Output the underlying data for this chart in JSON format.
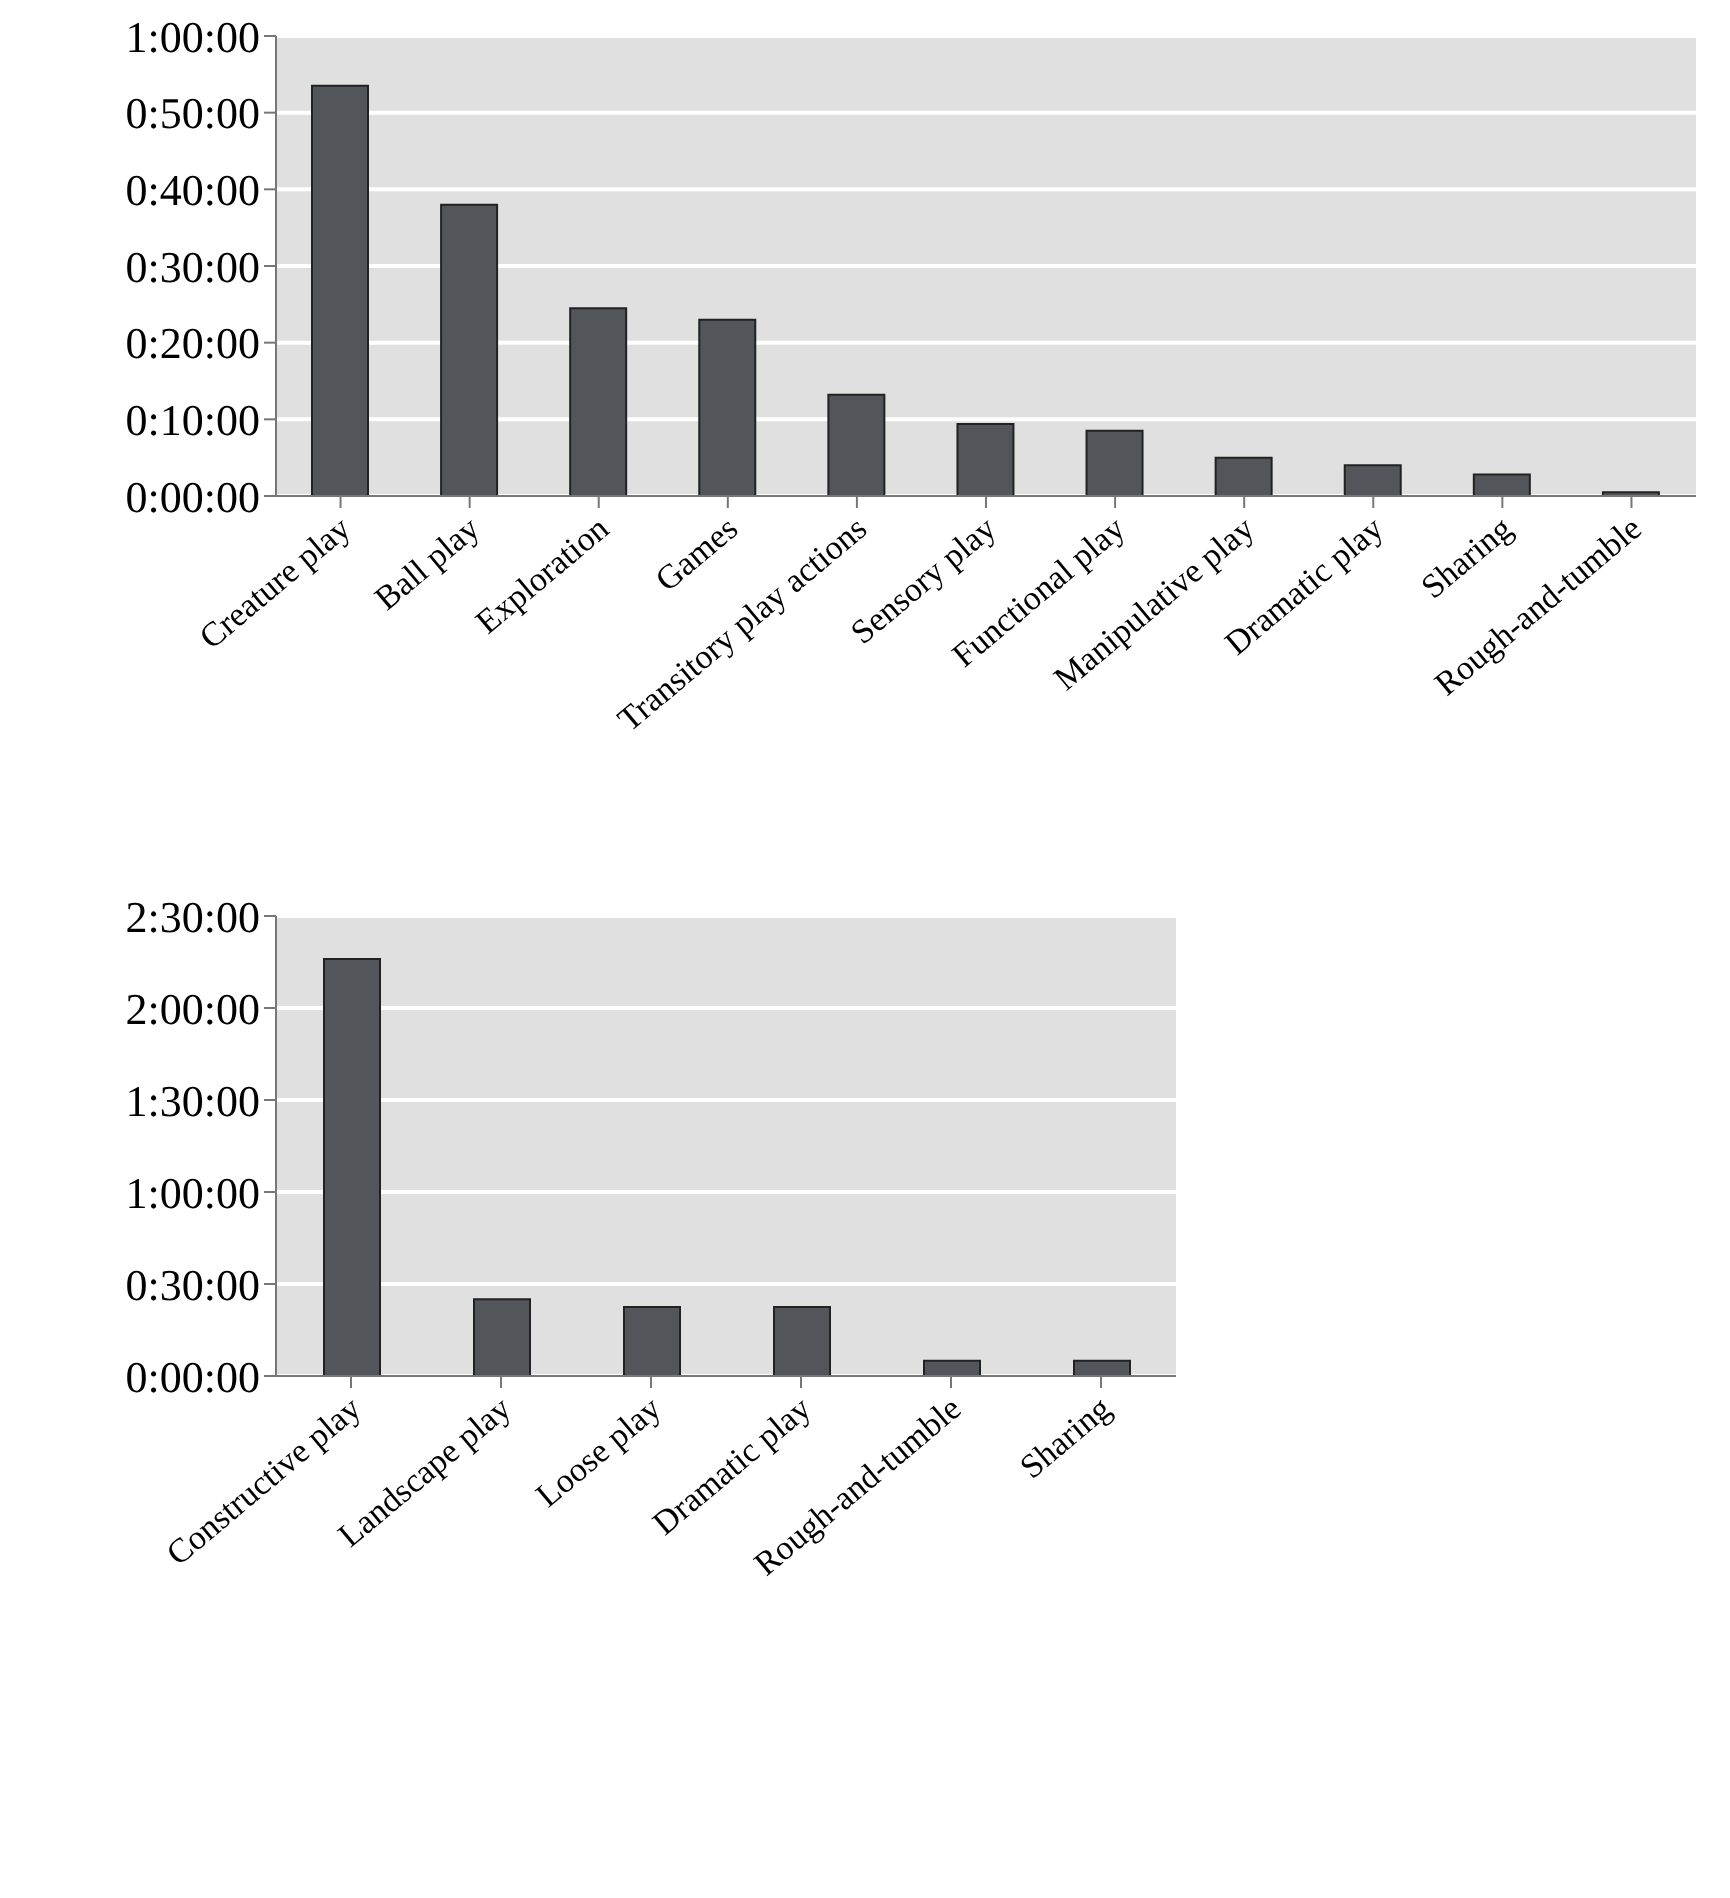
{
  "chart_data": [
    {
      "type": "bar",
      "categories": [
        "Creature play",
        "Ball play",
        "Exploration",
        "Games",
        "Transitory play actions",
        "Sensory play",
        "Functional play",
        "Manipulative play",
        "Dramatic play",
        "Sharing",
        "Rough-and-tumble"
      ],
      "values": [
        53.5,
        38,
        24.5,
        23,
        13.2,
        9.4,
        8.5,
        5,
        4,
        2.8,
        0.5
      ],
      "color": "#52565b",
      "ylim": [
        0,
        60
      ],
      "yticks": [
        {
          "value": 0,
          "label": "0:00:00"
        },
        {
          "value": 10,
          "label": "0:10:00"
        },
        {
          "value": 20,
          "label": "0:20:00"
        },
        {
          "value": 30,
          "label": "0:30:00"
        },
        {
          "value": 40,
          "label": "0:40:00"
        },
        {
          "value": 50,
          "label": "0:50:00"
        },
        {
          "value": 60,
          "label": "1:00:00"
        }
      ],
      "grid": "y",
      "legend": false
    },
    {
      "type": "bar",
      "categories": [
        "Constructive play",
        "Landscape play",
        "Loose play",
        "Dramatic play",
        "Rough-and-tumble",
        "Sharing"
      ],
      "values": [
        136,
        25,
        22.5,
        22.5,
        5,
        5
      ],
      "color": "#52565b",
      "ylim": [
        0,
        150
      ],
      "yticks": [
        {
          "value": 0,
          "label": "0:00:00"
        },
        {
          "value": 30,
          "label": "0:30:00"
        },
        {
          "value": 60,
          "label": "1:00:00"
        },
        {
          "value": 90,
          "label": "1:30:00"
        },
        {
          "value": 120,
          "label": "2:00:00"
        },
        {
          "value": 150,
          "label": "2:30:00"
        }
      ],
      "grid": "y",
      "legend": false
    }
  ]
}
